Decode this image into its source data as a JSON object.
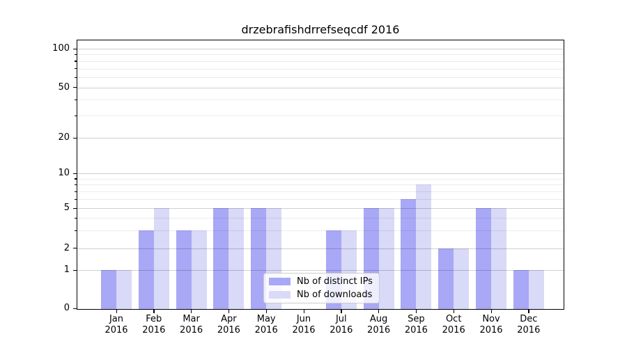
{
  "chart_data": {
    "type": "bar",
    "title": "drzebrafishdrrefseqcdf 2016",
    "categories": [
      "Jan",
      "Feb",
      "Mar",
      "Apr",
      "May",
      "Jun",
      "Jul",
      "Aug",
      "Sep",
      "Oct",
      "Nov",
      "Dec"
    ],
    "x_tick_year": "2016",
    "series": [
      {
        "name": "Nb of distinct IPs",
        "color": "#a8a8f6",
        "values": [
          1,
          3,
          3,
          5,
          5,
          0,
          3,
          5,
          6,
          2,
          5,
          1
        ]
      },
      {
        "name": "Nb of downloads",
        "color": "#d9d9f8",
        "values": [
          1,
          5,
          3,
          5,
          5,
          0,
          3,
          5,
          8,
          2,
          5,
          1
        ]
      }
    ],
    "yaxis": {
      "scale": "log-like",
      "tick_labels": [
        "0",
        "1",
        "2",
        "5",
        "10",
        "20",
        "50",
        "100"
      ],
      "ticks": [
        0,
        1,
        2,
        5,
        10,
        20,
        50,
        100
      ],
      "minor_gridlines": [
        3,
        4,
        6,
        7,
        8,
        9,
        30,
        40,
        60,
        70,
        80,
        90
      ]
    },
    "grid": "on",
    "legend_position": "inside-lower-center"
  }
}
